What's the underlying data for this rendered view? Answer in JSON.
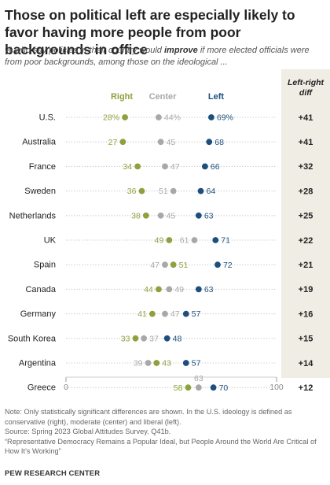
{
  "header": {
    "title": "Those on political left are especially likely to favor having more people from poor backgrounds in office",
    "subtitle_pre": "% who say policies in their country would ",
    "subtitle_em": "improve",
    "subtitle_post": " if more elected officials were from poor backgrounds, among those on the ideological ..."
  },
  "colors": {
    "right": "#8da13d",
    "center": "#a8a8a8",
    "left": "#1c4f7c",
    "dots": "#bdbdbd"
  },
  "chart_data": {
    "type": "dot",
    "legend": {
      "right": "Right",
      "center": "Center",
      "left": "Left",
      "diff": "Left-right diff"
    },
    "xlim": [
      0,
      100
    ],
    "xticks": [
      "0",
      "100"
    ],
    "rows": [
      {
        "country": "U.S.",
        "right": 28,
        "center": 44,
        "left": 69,
        "diff": "+41",
        "right_label": "28%",
        "center_label": "44%",
        "left_label": "69%"
      },
      {
        "country": "Australia",
        "right": 27,
        "center": 45,
        "left": 68,
        "diff": "+41",
        "right_label": "27",
        "center_label": "45",
        "left_label": "68"
      },
      {
        "country": "France",
        "right": 34,
        "center": 47,
        "left": 66,
        "diff": "+32",
        "right_label": "34",
        "center_label": "47",
        "left_label": "66"
      },
      {
        "country": "Sweden",
        "right": 36,
        "center": 51,
        "left": 64,
        "diff": "+28",
        "right_label": "36",
        "center_label": "51",
        "left_label": "64"
      },
      {
        "country": "Netherlands",
        "right": 38,
        "center": 45,
        "left": 63,
        "diff": "+25",
        "right_label": "38",
        "center_label": "45",
        "left_label": "63"
      },
      {
        "country": "UK",
        "right": 49,
        "center": 61,
        "left": 71,
        "diff": "+22",
        "right_label": "49",
        "center_label": "61",
        "left_label": "71"
      },
      {
        "country": "Spain",
        "right": 51,
        "center": 47,
        "left": 72,
        "diff": "+21",
        "right_label": "51",
        "center_label": "47",
        "left_label": "72"
      },
      {
        "country": "Canada",
        "right": 44,
        "center": 49,
        "left": 63,
        "diff": "+19",
        "right_label": "44",
        "center_label": "49",
        "left_label": "63"
      },
      {
        "country": "Germany",
        "right": 41,
        "center": 47,
        "left": 57,
        "diff": "+16",
        "right_label": "41",
        "center_label": "47",
        "left_label": "57"
      },
      {
        "country": "South Korea",
        "right": 33,
        "center": 37,
        "left": 48,
        "diff": "+15",
        "right_label": "33",
        "center_label": "37",
        "left_label": "48"
      },
      {
        "country": "Argentina",
        "right": 43,
        "center": 39,
        "left": 57,
        "diff": "+14",
        "right_label": "43",
        "center_label": "39",
        "left_label": "57"
      },
      {
        "country": "Greece",
        "right": 58,
        "center": 63,
        "left": 70,
        "diff": "+12",
        "right_label": "58",
        "center_label": "63",
        "left_label": "70"
      }
    ]
  },
  "footer": {
    "note": "Note: Only statistically significant differences are shown. In the U.S. ideology is defined as conservative (right), moderate (center) and liberal (left).",
    "source": "Source: Spring 2023 Global Attitudes Survey. Q41b.",
    "report": "“Representative Democracy Remains a Popular Ideal, but People Around the World Are Critical of How It’s Working”",
    "brand": "PEW RESEARCH CENTER"
  }
}
